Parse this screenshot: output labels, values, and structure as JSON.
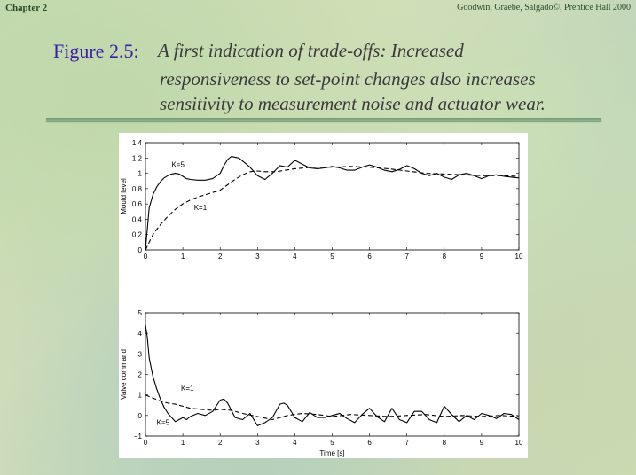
{
  "header": {
    "chapter": "Chapter 2",
    "credit": "Goodwin, Graebe, Salgado©, Prentice Hall 2000"
  },
  "caption": {
    "figure_label": "Figure 2.5:",
    "line1": "A first indication of trade-offs:  Increased",
    "line2": "responsiveness to set-point changes also increases",
    "line3": "sensitivity to measurement noise and actuator wear."
  },
  "colors": {
    "figure_label": "#3a1fa8",
    "caption": "#3a3a3a",
    "rule": "#6f9a74"
  },
  "chart_data": [
    {
      "type": "line",
      "title": "",
      "xlabel": "",
      "ylabel": "Mould level",
      "xlim": [
        0,
        10
      ],
      "ylim": [
        0,
        1.4
      ],
      "xticks": [
        "0",
        "1",
        "2",
        "3",
        "4",
        "5",
        "6",
        "7",
        "8",
        "9",
        "10"
      ],
      "yticks": [
        "0",
        "0.2",
        "0.4",
        "0.6",
        "0.8",
        "1",
        "1.2",
        "1.4"
      ],
      "series": [
        {
          "name": "K=5",
          "style": "solid",
          "x": [
            0,
            0.1,
            0.2,
            0.3,
            0.4,
            0.5,
            0.6,
            0.7,
            0.8,
            0.9,
            1.0,
            1.1,
            1.2,
            1.4,
            1.6,
            1.8,
            2.0,
            2.1,
            2.2,
            2.3,
            2.4,
            2.5,
            2.6,
            2.8,
            3.0,
            3.2,
            3.4,
            3.6,
            3.8,
            4.0,
            4.2,
            4.4,
            4.6,
            4.8,
            5.0,
            5.2,
            5.4,
            5.6,
            5.8,
            6.0,
            6.2,
            6.4,
            6.6,
            6.8,
            7.0,
            7.2,
            7.4,
            7.6,
            7.8,
            8.0,
            8.2,
            8.4,
            8.6,
            8.8,
            9.0,
            9.2,
            9.4,
            9.6,
            9.8,
            10.0
          ],
          "y": [
            0,
            0.55,
            0.72,
            0.82,
            0.89,
            0.94,
            0.97,
            0.99,
            1.0,
            0.99,
            0.96,
            0.93,
            0.92,
            0.91,
            0.91,
            0.93,
            1.0,
            1.1,
            1.18,
            1.22,
            1.21,
            1.2,
            1.16,
            1.08,
            0.97,
            0.92,
            1.0,
            1.1,
            1.08,
            1.17,
            1.12,
            1.07,
            1.06,
            1.07,
            1.09,
            1.07,
            1.04,
            1.04,
            1.08,
            1.11,
            1.08,
            1.04,
            1.02,
            1.05,
            1.1,
            1.06,
            1.0,
            0.97,
            1.0,
            0.95,
            0.92,
            0.98,
            1.0,
            0.97,
            0.93,
            0.97,
            0.98,
            0.96,
            0.95,
            0.94
          ]
        },
        {
          "name": "K=1",
          "style": "dashed",
          "x": [
            0,
            0.1,
            0.2,
            0.4,
            0.6,
            0.8,
            1.0,
            1.2,
            1.4,
            1.6,
            1.8,
            2.0,
            2.2,
            2.4,
            2.6,
            2.8,
            3.0,
            3.2,
            3.5,
            4.0,
            4.5,
            5.0,
            5.5,
            6.0,
            6.5,
            7.0,
            7.5,
            8.0,
            8.5,
            9.0,
            9.5,
            10.0
          ],
          "y": [
            0,
            0.1,
            0.2,
            0.33,
            0.44,
            0.53,
            0.6,
            0.65,
            0.69,
            0.72,
            0.75,
            0.78,
            0.85,
            0.92,
            0.98,
            1.02,
            1.03,
            1.02,
            1.02,
            1.06,
            1.08,
            1.08,
            1.09,
            1.08,
            1.06,
            1.03,
            1.0,
            0.99,
            0.98,
            0.97,
            0.97,
            0.96
          ]
        }
      ]
    },
    {
      "type": "line",
      "title": "",
      "xlabel": "Time [s]",
      "ylabel": "Valve command",
      "xlim": [
        0,
        10
      ],
      "ylim": [
        -1,
        5
      ],
      "xticks": [
        "0",
        "1",
        "2",
        "3",
        "4",
        "5",
        "6",
        "7",
        "8",
        "9",
        "10"
      ],
      "yticks": [
        "−1",
        "0",
        "1",
        "2",
        "3",
        "4",
        "5"
      ],
      "series": [
        {
          "name": "K=5",
          "style": "solid",
          "x": [
            0,
            0.05,
            0.1,
            0.2,
            0.3,
            0.4,
            0.5,
            0.6,
            0.7,
            0.8,
            0.9,
            1.0,
            1.1,
            1.2,
            1.4,
            1.6,
            1.8,
            2.0,
            2.1,
            2.2,
            2.4,
            2.6,
            2.8,
            3.0,
            3.2,
            3.4,
            3.6,
            3.7,
            3.8,
            4.0,
            4.2,
            4.4,
            4.6,
            4.8,
            5.0,
            5.2,
            5.4,
            5.6,
            5.8,
            6.0,
            6.2,
            6.4,
            6.6,
            6.8,
            7.0,
            7.2,
            7.4,
            7.6,
            7.8,
            8.0,
            8.2,
            8.4,
            8.6,
            8.8,
            9.0,
            9.2,
            9.4,
            9.6,
            9.8,
            10.0
          ],
          "y": [
            4.4,
            3.8,
            2.8,
            1.9,
            1.3,
            0.8,
            0.4,
            0.1,
            -0.1,
            -0.3,
            -0.2,
            -0.1,
            -0.2,
            -0.05,
            0.1,
            0.0,
            0.2,
            0.75,
            0.8,
            0.6,
            -0.1,
            -0.2,
            0.1,
            -0.5,
            -0.35,
            -0.1,
            0.55,
            0.6,
            0.5,
            -0.1,
            -0.3,
            0.15,
            -0.1,
            -0.1,
            0.0,
            0.1,
            -0.15,
            -0.35,
            0.05,
            0.35,
            -0.05,
            -0.3,
            0.35,
            -0.2,
            -0.35,
            0.2,
            0.2,
            -0.2,
            -0.35,
            0.45,
            0.05,
            -0.3,
            0.0,
            -0.2,
            0.1,
            0.0,
            -0.15,
            0.1,
            0.05,
            -0.2
          ]
        },
        {
          "name": "K=1",
          "style": "dashed",
          "x": [
            0,
            0.2,
            0.4,
            0.6,
            0.8,
            1.0,
            1.2,
            1.5,
            1.8,
            2.0,
            2.3,
            2.6,
            3.0,
            3.4,
            3.8,
            4.2,
            4.6,
            5.0,
            5.5,
            6.0,
            6.5,
            7.0,
            7.5,
            8.0,
            8.5,
            9.0,
            9.5,
            10.0
          ],
          "y": [
            1.0,
            0.85,
            0.7,
            0.6,
            0.55,
            0.45,
            0.35,
            0.3,
            0.25,
            0.3,
            0.25,
            0.1,
            -0.05,
            -0.2,
            0.0,
            0.1,
            0.05,
            -0.05,
            0.05,
            0.0,
            -0.05,
            0.0,
            0.05,
            -0.05,
            0.0,
            -0.05,
            0.0,
            -0.05
          ]
        }
      ]
    }
  ]
}
